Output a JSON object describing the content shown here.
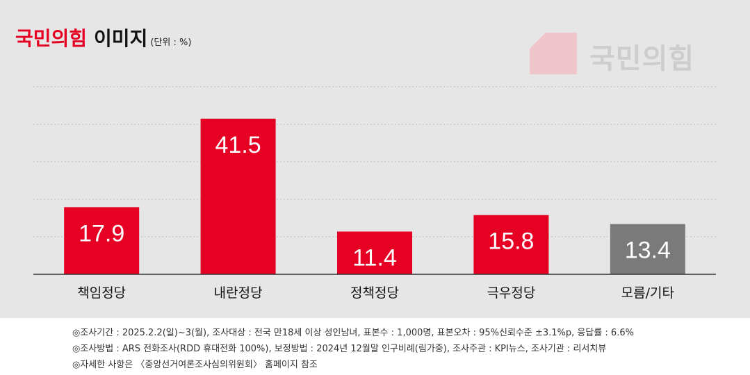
{
  "header": {
    "title_party": "국민의힘",
    "title_rest": "이미지",
    "unit": "(단위 : %)",
    "logo_text": "국민의힘"
  },
  "colors": {
    "accent": "#e60023",
    "other": "#7a7a7a",
    "logo_mark": "#f0c5cb",
    "logo_text": "#cdcdcd"
  },
  "chart_data": {
    "type": "bar",
    "title": "국민의힘 이미지",
    "unit": "(단위 : %)",
    "categories": [
      "책임정당",
      "내란정당",
      "정책정당",
      "극우정당",
      "모름/기타"
    ],
    "values": [
      17.9,
      41.5,
      11.4,
      15.8,
      13.4
    ],
    "value_labels": [
      "17.9",
      "41.5",
      "11.4",
      "15.8",
      "13.4"
    ],
    "bar_colors": [
      "#e60023",
      "#e60023",
      "#e60023",
      "#e60023",
      "#7a7a7a"
    ],
    "ylim": [
      0,
      50
    ],
    "grid": true,
    "xlabel": "",
    "ylabel": ""
  },
  "footer": {
    "notes": [
      "◎조사기간 : 2025.2.2(일)~3(월), 조사대상 : 전국 만18세 이상 성인남녀, 표본수 : 1,000명, 표본오차 : 95%신뢰수준 ±3.1%p, 응답률 : 6.6%",
      "◎조사방법 : ARS 전화조사(RDD 휴대전화 100%), 보정방법 : 2024년 12월말 인구비례(림가중), 조사주관 : KPI뉴스, 조사기관 : 리서치뷰",
      "◎자세한 사항은 〈중앙선거여론조사심의위원회〉 홈페이지 참조"
    ]
  }
}
